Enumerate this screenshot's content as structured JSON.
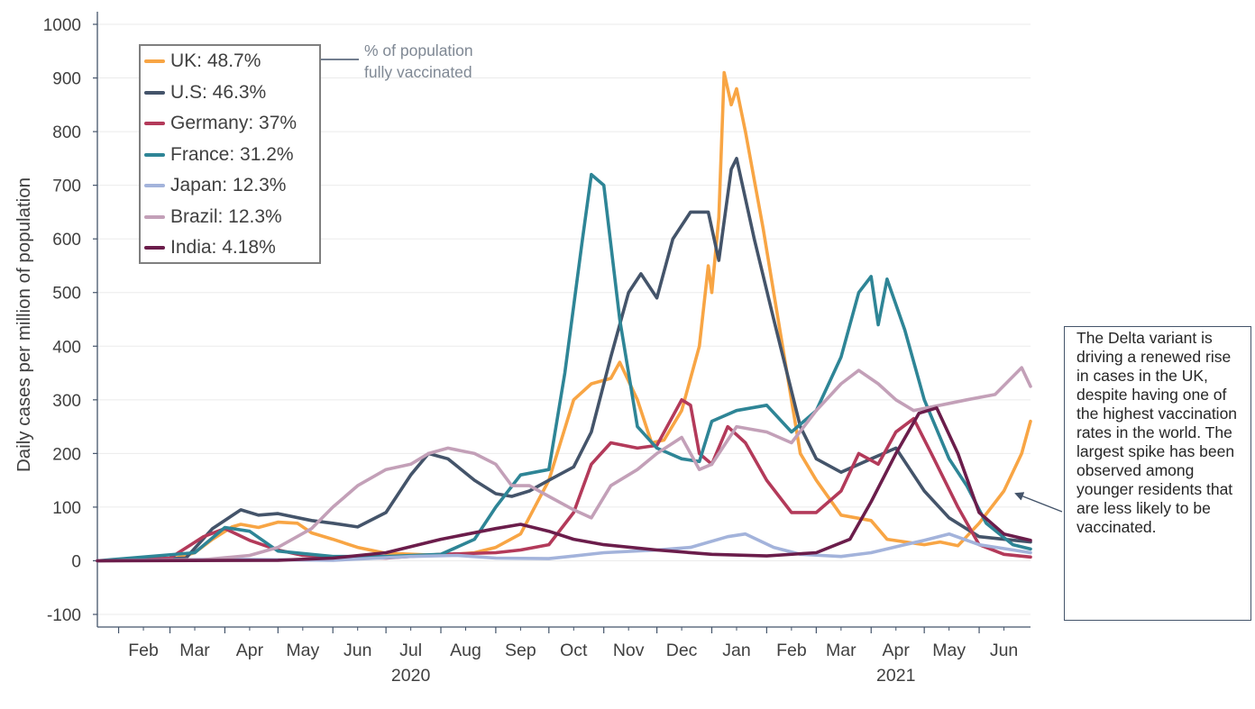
{
  "chart_data": {
    "type": "line",
    "ylabel": "Daily cases per million of population",
    "xlabel": "",
    "ylim": [
      -100,
      1000
    ],
    "yticks": [
      -100,
      0,
      100,
      200,
      300,
      400,
      500,
      600,
      700,
      800,
      900,
      1000
    ],
    "xrange": [
      "2020-01-20",
      "2021-06-30"
    ],
    "month_ticks": [
      "Feb",
      "Mar",
      "Apr",
      "May",
      "Jun",
      "Jul",
      "Aug",
      "Sep",
      "Oct",
      "Nov",
      "Dec",
      "Jan",
      "Feb",
      "Mar",
      "Apr",
      "May",
      "Jun"
    ],
    "year_labels": [
      {
        "label": "2020",
        "month": "2020-07"
      },
      {
        "label": "2021",
        "month": "2021-04"
      }
    ],
    "grid": "horizontal",
    "legend_position": "top-left",
    "series": [
      {
        "name": "UK: 48.7%",
        "color": "#f8a544",
        "points": [
          [
            "2020-01-20",
            0
          ],
          [
            "2020-03-01",
            2
          ],
          [
            "2020-03-15",
            15
          ],
          [
            "2020-03-25",
            40
          ],
          [
            "2020-04-05",
            63
          ],
          [
            "2020-04-10",
            68
          ],
          [
            "2020-04-20",
            62
          ],
          [
            "2020-05-01",
            72
          ],
          [
            "2020-05-12",
            70
          ],
          [
            "2020-05-20",
            52
          ],
          [
            "2020-06-01",
            40
          ],
          [
            "2020-06-15",
            25
          ],
          [
            "2020-07-01",
            14
          ],
          [
            "2020-08-01",
            10
          ],
          [
            "2020-08-20",
            15
          ],
          [
            "2020-09-01",
            25
          ],
          [
            "2020-09-15",
            50
          ],
          [
            "2020-10-01",
            150
          ],
          [
            "2020-10-15",
            300
          ],
          [
            "2020-10-25",
            330
          ],
          [
            "2020-11-05",
            340
          ],
          [
            "2020-11-10",
            370
          ],
          [
            "2020-11-20",
            300
          ],
          [
            "2020-11-28",
            220
          ],
          [
            "2020-12-05",
            225
          ],
          [
            "2020-12-15",
            280
          ],
          [
            "2020-12-25",
            400
          ],
          [
            "2020-12-30",
            550
          ],
          [
            "2021-01-01",
            500
          ],
          [
            "2021-01-05",
            640
          ],
          [
            "2021-01-08",
            910
          ],
          [
            "2021-01-12",
            850
          ],
          [
            "2021-01-15",
            880
          ],
          [
            "2021-01-20",
            800
          ],
          [
            "2021-01-30",
            620
          ],
          [
            "2021-02-10",
            400
          ],
          [
            "2021-02-20",
            200
          ],
          [
            "2021-03-01",
            150
          ],
          [
            "2021-03-15",
            85
          ],
          [
            "2021-04-01",
            75
          ],
          [
            "2021-04-10",
            40
          ],
          [
            "2021-05-01",
            30
          ],
          [
            "2021-05-10",
            35
          ],
          [
            "2021-05-20",
            28
          ],
          [
            "2021-06-01",
            70
          ],
          [
            "2021-06-15",
            130
          ],
          [
            "2021-06-25",
            200
          ],
          [
            "2021-06-30",
            260
          ]
        ]
      },
      {
        "name": "U.S: 46.3%",
        "color": "#44546a",
        "points": [
          [
            "2020-01-20",
            0
          ],
          [
            "2020-03-10",
            5
          ],
          [
            "2020-03-25",
            60
          ],
          [
            "2020-04-10",
            95
          ],
          [
            "2020-04-20",
            85
          ],
          [
            "2020-05-01",
            88
          ],
          [
            "2020-05-20",
            75
          ],
          [
            "2020-06-01",
            70
          ],
          [
            "2020-06-15",
            63
          ],
          [
            "2020-07-01",
            90
          ],
          [
            "2020-07-15",
            160
          ],
          [
            "2020-07-25",
            200
          ],
          [
            "2020-08-05",
            190
          ],
          [
            "2020-08-20",
            150
          ],
          [
            "2020-09-01",
            125
          ],
          [
            "2020-09-10",
            120
          ],
          [
            "2020-09-20",
            130
          ],
          [
            "2020-10-01",
            150
          ],
          [
            "2020-10-15",
            175
          ],
          [
            "2020-10-25",
            240
          ],
          [
            "2020-11-05",
            380
          ],
          [
            "2020-11-15",
            500
          ],
          [
            "2020-11-22",
            535
          ],
          [
            "2020-12-01",
            490
          ],
          [
            "2020-12-10",
            600
          ],
          [
            "2020-12-20",
            650
          ],
          [
            "2020-12-30",
            650
          ],
          [
            "2021-01-05",
            560
          ],
          [
            "2021-01-12",
            730
          ],
          [
            "2021-01-15",
            750
          ],
          [
            "2021-01-25",
            600
          ],
          [
            "2021-02-05",
            450
          ],
          [
            "2021-02-20",
            250
          ],
          [
            "2021-03-01",
            190
          ],
          [
            "2021-03-15",
            165
          ],
          [
            "2021-04-01",
            190
          ],
          [
            "2021-04-15",
            210
          ],
          [
            "2021-05-01",
            130
          ],
          [
            "2021-05-15",
            80
          ],
          [
            "2021-06-01",
            45
          ],
          [
            "2021-06-15",
            40
          ],
          [
            "2021-06-30",
            35
          ]
        ]
      },
      {
        "name": "Germany: 37%",
        "color": "#b33a5a",
        "points": [
          [
            "2020-01-20",
            0
          ],
          [
            "2020-03-01",
            5
          ],
          [
            "2020-03-20",
            45
          ],
          [
            "2020-04-01",
            60
          ],
          [
            "2020-04-15",
            38
          ],
          [
            "2020-05-01",
            20
          ],
          [
            "2020-05-15",
            10
          ],
          [
            "2020-06-01",
            7
          ],
          [
            "2020-07-01",
            5
          ],
          [
            "2020-08-01",
            12
          ],
          [
            "2020-09-01",
            15
          ],
          [
            "2020-09-15",
            20
          ],
          [
            "2020-10-01",
            30
          ],
          [
            "2020-10-15",
            90
          ],
          [
            "2020-10-25",
            180
          ],
          [
            "2020-11-05",
            220
          ],
          [
            "2020-11-20",
            210
          ],
          [
            "2020-12-01",
            215
          ],
          [
            "2020-12-15",
            300
          ],
          [
            "2020-12-20",
            290
          ],
          [
            "2020-12-25",
            200
          ],
          [
            "2021-01-01",
            180
          ],
          [
            "2021-01-10",
            250
          ],
          [
            "2021-01-20",
            220
          ],
          [
            "2021-02-01",
            150
          ],
          [
            "2021-02-15",
            90
          ],
          [
            "2021-03-01",
            90
          ],
          [
            "2021-03-15",
            130
          ],
          [
            "2021-03-25",
            200
          ],
          [
            "2021-04-05",
            180
          ],
          [
            "2021-04-15",
            240
          ],
          [
            "2021-04-25",
            265
          ],
          [
            "2021-05-05",
            200
          ],
          [
            "2021-05-20",
            100
          ],
          [
            "2021-06-01",
            30
          ],
          [
            "2021-06-15",
            12
          ],
          [
            "2021-06-30",
            7
          ]
        ]
      },
      {
        "name": "France: 31.2%",
        "color": "#2e8596",
        "points": [
          [
            "2020-01-20",
            0
          ],
          [
            "2020-03-15",
            15
          ],
          [
            "2020-04-01",
            62
          ],
          [
            "2020-04-15",
            55
          ],
          [
            "2020-05-01",
            18
          ],
          [
            "2020-06-01",
            8
          ],
          [
            "2020-07-01",
            8
          ],
          [
            "2020-08-01",
            12
          ],
          [
            "2020-08-20",
            40
          ],
          [
            "2020-09-01",
            100
          ],
          [
            "2020-09-15",
            160
          ],
          [
            "2020-10-01",
            170
          ],
          [
            "2020-10-10",
            350
          ],
          [
            "2020-10-20",
            600
          ],
          [
            "2020-10-25",
            720
          ],
          [
            "2020-11-01",
            700
          ],
          [
            "2020-11-10",
            450
          ],
          [
            "2020-11-20",
            250
          ],
          [
            "2020-12-01",
            210
          ],
          [
            "2020-12-15",
            190
          ],
          [
            "2020-12-25",
            185
          ],
          [
            "2021-01-01",
            260
          ],
          [
            "2021-01-15",
            280
          ],
          [
            "2021-02-01",
            290
          ],
          [
            "2021-02-15",
            240
          ],
          [
            "2021-03-01",
            280
          ],
          [
            "2021-03-15",
            380
          ],
          [
            "2021-03-25",
            500
          ],
          [
            "2021-04-01",
            530
          ],
          [
            "2021-04-05",
            440
          ],
          [
            "2021-04-10",
            525
          ],
          [
            "2021-04-20",
            430
          ],
          [
            "2021-05-01",
            300
          ],
          [
            "2021-05-15",
            190
          ],
          [
            "2021-05-25",
            140
          ],
          [
            "2021-06-05",
            70
          ],
          [
            "2021-06-20",
            30
          ],
          [
            "2021-06-30",
            22
          ]
        ]
      },
      {
        "name": "Japan: 12.3%",
        "color": "#a3b3db",
        "points": [
          [
            "2020-01-20",
            0
          ],
          [
            "2020-04-01",
            3
          ],
          [
            "2020-06-01",
            1
          ],
          [
            "2020-07-15",
            8
          ],
          [
            "2020-08-10",
            10
          ],
          [
            "2020-09-01",
            5
          ],
          [
            "2020-10-01",
            4
          ],
          [
            "2020-11-01",
            15
          ],
          [
            "2020-12-01",
            20
          ],
          [
            "2020-12-20",
            25
          ],
          [
            "2021-01-10",
            45
          ],
          [
            "2021-01-20",
            50
          ],
          [
            "2021-02-05",
            25
          ],
          [
            "2021-02-20",
            12
          ],
          [
            "2021-03-15",
            8
          ],
          [
            "2021-04-01",
            15
          ],
          [
            "2021-04-20",
            30
          ],
          [
            "2021-05-01",
            38
          ],
          [
            "2021-05-15",
            50
          ],
          [
            "2021-06-01",
            30
          ],
          [
            "2021-06-30",
            15
          ]
        ]
      },
      {
        "name": "Brazil: 12.3%",
        "color": "#c3a0b8",
        "points": [
          [
            "2020-01-20",
            0
          ],
          [
            "2020-03-20",
            2
          ],
          [
            "2020-04-15",
            10
          ],
          [
            "2020-05-01",
            25
          ],
          [
            "2020-05-20",
            60
          ],
          [
            "2020-06-01",
            100
          ],
          [
            "2020-06-15",
            140
          ],
          [
            "2020-07-01",
            170
          ],
          [
            "2020-07-15",
            180
          ],
          [
            "2020-07-25",
            200
          ],
          [
            "2020-08-05",
            210
          ],
          [
            "2020-08-20",
            200
          ],
          [
            "2020-09-01",
            180
          ],
          [
            "2020-09-10",
            140
          ],
          [
            "2020-09-20",
            140
          ],
          [
            "2020-10-01",
            120
          ],
          [
            "2020-10-15",
            95
          ],
          [
            "2020-10-25",
            80
          ],
          [
            "2020-11-05",
            140
          ],
          [
            "2020-11-20",
            170
          ],
          [
            "2020-12-01",
            200
          ],
          [
            "2020-12-15",
            230
          ],
          [
            "2020-12-25",
            170
          ],
          [
            "2021-01-01",
            180
          ],
          [
            "2021-01-15",
            250
          ],
          [
            "2021-02-01",
            240
          ],
          [
            "2021-02-15",
            220
          ],
          [
            "2021-03-01",
            280
          ],
          [
            "2021-03-15",
            330
          ],
          [
            "2021-03-25",
            355
          ],
          [
            "2021-04-05",
            330
          ],
          [
            "2021-04-15",
            300
          ],
          [
            "2021-04-25",
            280
          ],
          [
            "2021-05-10",
            290
          ],
          [
            "2021-05-25",
            300
          ],
          [
            "2021-06-10",
            310
          ],
          [
            "2021-06-25",
            360
          ],
          [
            "2021-06-30",
            325
          ]
        ]
      },
      {
        "name": "India: 4.18%",
        "color": "#6b1d4b",
        "points": [
          [
            "2020-01-20",
            0
          ],
          [
            "2020-05-01",
            1
          ],
          [
            "2020-06-01",
            5
          ],
          [
            "2020-07-01",
            15
          ],
          [
            "2020-08-01",
            40
          ],
          [
            "2020-09-01",
            60
          ],
          [
            "2020-09-15",
            68
          ],
          [
            "2020-10-01",
            55
          ],
          [
            "2020-10-15",
            40
          ],
          [
            "2020-11-01",
            30
          ],
          [
            "2020-12-01",
            20
          ],
          [
            "2021-01-01",
            12
          ],
          [
            "2021-02-01",
            9
          ],
          [
            "2021-03-01",
            15
          ],
          [
            "2021-03-20",
            40
          ],
          [
            "2021-04-01",
            110
          ],
          [
            "2021-04-15",
            200
          ],
          [
            "2021-04-28",
            275
          ],
          [
            "2021-05-08",
            285
          ],
          [
            "2021-05-20",
            200
          ],
          [
            "2021-06-01",
            90
          ],
          [
            "2021-06-15",
            50
          ],
          [
            "2021-06-30",
            38
          ]
        ]
      }
    ]
  },
  "annotations": {
    "vaccination_note": [
      "% of population",
      "fully vaccinated"
    ],
    "delta_callout": "The Delta variant is driving a renewed rise in cases in the UK, despite having one of the highest vaccination rates in the world. The largest spike has been observed among younger residents that are less likely to be vaccinated."
  },
  "colors": {
    "axis": "#44546a",
    "grid": "#ebebeb",
    "text": "#404040",
    "arrow": "#44546a"
  }
}
